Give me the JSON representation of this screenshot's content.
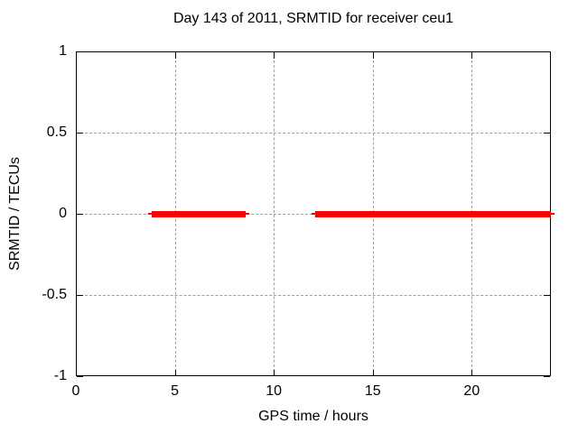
{
  "chart_data": {
    "type": "line",
    "title": "Day 143 of 2011, SRMTID for receiver ceu1",
    "xlabel": "GPS time / hours",
    "ylabel": "SRMTID / TECUs",
    "xlim": [
      0,
      24
    ],
    "ylim": [
      -1,
      1
    ],
    "x_ticks": [
      0,
      5,
      10,
      15,
      20
    ],
    "x_tick_labels": [
      "0",
      "5",
      "10",
      "15",
      "20"
    ],
    "y_ticks": [
      -1,
      -0.5,
      0,
      0.5,
      1
    ],
    "y_tick_labels": [
      "-1",
      "-0.5",
      "0",
      "0.5",
      "1"
    ],
    "grid": true,
    "legend": "none",
    "series": [
      {
        "name": "SRMTID",
        "color": "#ff0000",
        "y_value": 0,
        "segments": [
          {
            "start_hour": 3.85,
            "end_hour": 8.6
          },
          {
            "start_hour": 12.1,
            "end_hour": 24.0
          }
        ]
      }
    ],
    "colors": {
      "line": "#ff0000",
      "grid": "#a0a0a0",
      "axis": "#000000",
      "text": "#000000",
      "background": "#ffffff"
    }
  }
}
